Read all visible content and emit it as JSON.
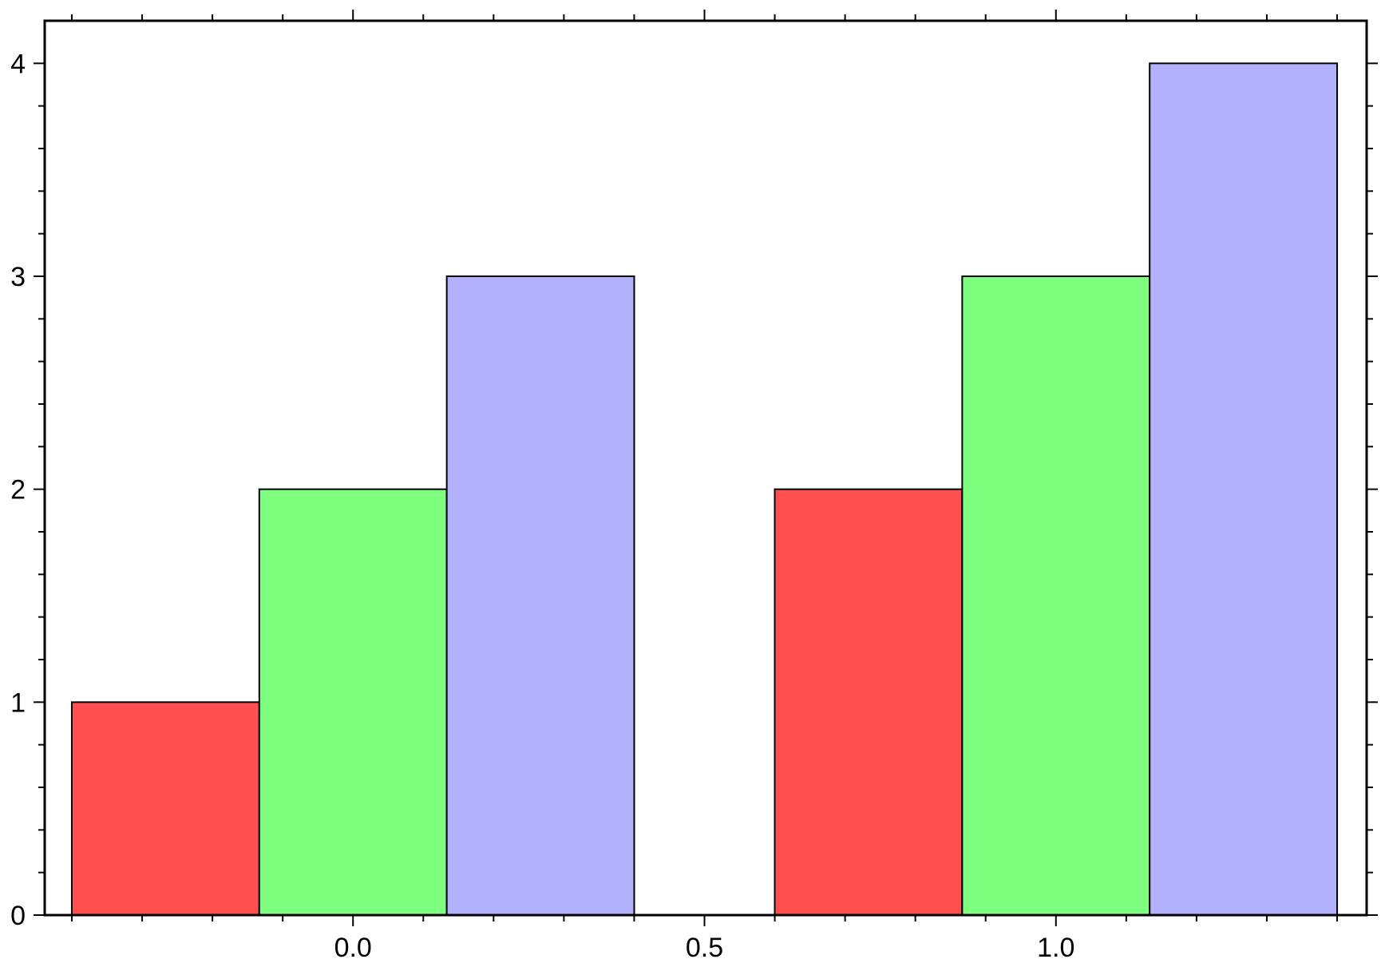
{
  "chart_data": {
    "type": "bar",
    "title": "",
    "xlabel": "",
    "ylabel": "",
    "xlim": [
      -0.4,
      1.4
    ],
    "ylim": [
      0,
      4.2
    ],
    "x_major_ticks": [
      0.0,
      0.5,
      1.0
    ],
    "x_tick_labels": [
      "0.0",
      "0.5",
      "1.0"
    ],
    "x_minor_ticks": [
      -0.4,
      -0.3,
      -0.2,
      -0.1,
      0.1,
      0.2,
      0.3,
      0.4,
      0.6,
      0.7,
      0.8,
      0.9,
      1.1,
      1.2,
      1.3,
      1.4
    ],
    "y_major_ticks": [
      0,
      1,
      2,
      3,
      4
    ],
    "y_tick_labels": [
      "0",
      "1",
      "2",
      "3",
      "4"
    ],
    "y_minor_ticks": [
      0.2,
      0.4,
      0.6,
      0.8,
      1.2,
      1.4,
      1.6,
      1.8,
      2.2,
      2.4,
      2.6,
      2.8,
      3.2,
      3.4,
      3.6,
      3.8
    ],
    "grid": false,
    "bar_width": 0.2667,
    "categories": [
      0,
      1
    ],
    "series": [
      {
        "x": [
          -0.2667,
          0.7333
        ],
        "values": [
          1,
          2
        ],
        "color": "#ff4f4f"
      },
      {
        "x": [
          0.0,
          1.0
        ],
        "values": [
          2,
          3
        ],
        "color": "#7fff7f"
      },
      {
        "x": [
          0.2667,
          1.2667
        ],
        "values": [
          3,
          4
        ],
        "color": "#b2b2ff"
      }
    ]
  }
}
